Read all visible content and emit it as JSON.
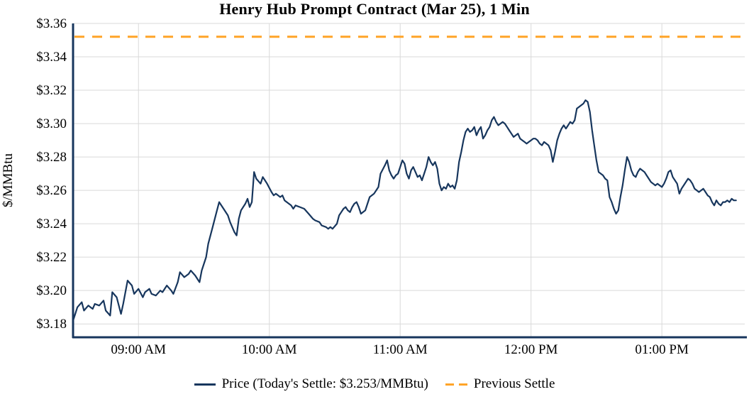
{
  "title": "Henry Hub Prompt Contract (Mar 25), 1 Min",
  "colors": {
    "price_line": "#17365d",
    "previous_settle": "#FFA428",
    "grid": "#d9d9d9",
    "axis": "#17365d",
    "text": "#000000",
    "background": "#ffffff"
  },
  "legend": {
    "price_label": "Price (Today's Settle: $3.253/MMBtu)",
    "previous_settle_label": "Previous Settle"
  },
  "chart_data": {
    "type": "line",
    "title": "Henry Hub Prompt Contract (Mar 25), 1 Min",
    "xlabel": "",
    "ylabel": "$/MMBtu",
    "x_unit": "minutes since 08:30 AM",
    "xlim": [
      0,
      308
    ],
    "ylim": [
      3.172,
      3.36
    ],
    "grid": true,
    "legend_position": "bottom",
    "x_ticks": [
      {
        "value": 30,
        "label": "09:00 AM"
      },
      {
        "value": 90,
        "label": "10:00 AM"
      },
      {
        "value": 150,
        "label": "11:00 AM"
      },
      {
        "value": 210,
        "label": "12:00 PM"
      },
      {
        "value": 270,
        "label": "01:00 PM"
      }
    ],
    "y_ticks": [
      {
        "value": 3.18,
        "label": "$3.18"
      },
      {
        "value": 3.2,
        "label": "$3.20"
      },
      {
        "value": 3.22,
        "label": "$3.22"
      },
      {
        "value": 3.24,
        "label": "$3.24"
      },
      {
        "value": 3.26,
        "label": "$3.26"
      },
      {
        "value": 3.28,
        "label": "$3.28"
      },
      {
        "value": 3.3,
        "label": "$3.30"
      },
      {
        "value": 3.32,
        "label": "$3.32"
      },
      {
        "value": 3.34,
        "label": "$3.34"
      },
      {
        "value": 3.36,
        "label": "$3.36"
      }
    ],
    "today_settle": 3.253,
    "previous_settle": 3.352,
    "series": [
      {
        "name": "Price (Today's Settle: $3.253/MMBtu)",
        "style": "solid",
        "color": "#17365d",
        "points": [
          [
            0,
            3.182
          ],
          [
            1,
            3.186
          ],
          [
            2,
            3.19
          ],
          [
            4,
            3.193
          ],
          [
            5,
            3.188
          ],
          [
            7,
            3.191
          ],
          [
            9,
            3.189
          ],
          [
            10,
            3.192
          ],
          [
            12,
            3.191
          ],
          [
            14,
            3.194
          ],
          [
            15,
            3.188
          ],
          [
            17,
            3.185
          ],
          [
            18,
            3.199
          ],
          [
            20,
            3.196
          ],
          [
            22,
            3.186
          ],
          [
            23,
            3.192
          ],
          [
            25,
            3.206
          ],
          [
            27,
            3.203
          ],
          [
            28,
            3.198
          ],
          [
            30,
            3.201
          ],
          [
            32,
            3.196
          ],
          [
            33,
            3.199
          ],
          [
            35,
            3.201
          ],
          [
            36,
            3.198
          ],
          [
            38,
            3.197
          ],
          [
            40,
            3.2
          ],
          [
            41,
            3.199
          ],
          [
            43,
            3.203
          ],
          [
            45,
            3.2
          ],
          [
            46,
            3.198
          ],
          [
            48,
            3.205
          ],
          [
            49,
            3.211
          ],
          [
            51,
            3.208
          ],
          [
            53,
            3.21
          ],
          [
            54,
            3.212
          ],
          [
            56,
            3.209
          ],
          [
            58,
            3.205
          ],
          [
            59,
            3.212
          ],
          [
            61,
            3.22
          ],
          [
            62,
            3.228
          ],
          [
            64,
            3.238
          ],
          [
            66,
            3.248
          ],
          [
            67,
            3.253
          ],
          [
            69,
            3.249
          ],
          [
            71,
            3.245
          ],
          [
            72,
            3.241
          ],
          [
            74,
            3.235
          ],
          [
            75,
            3.233
          ],
          [
            76,
            3.243
          ],
          [
            77,
            3.248
          ],
          [
            79,
            3.252
          ],
          [
            80,
            3.255
          ],
          [
            81,
            3.25
          ],
          [
            82,
            3.253
          ],
          [
            83,
            3.271
          ],
          [
            84,
            3.267
          ],
          [
            86,
            3.264
          ],
          [
            87,
            3.268
          ],
          [
            88,
            3.266
          ],
          [
            89,
            3.264
          ],
          [
            91,
            3.259
          ],
          [
            92,
            3.257
          ],
          [
            93,
            3.258
          ],
          [
            95,
            3.256
          ],
          [
            96,
            3.257
          ],
          [
            97,
            3.254
          ],
          [
            98,
            3.253
          ],
          [
            100,
            3.251
          ],
          [
            101,
            3.249
          ],
          [
            102,
            3.251
          ],
          [
            104,
            3.25
          ],
          [
            106,
            3.249
          ],
          [
            108,
            3.246
          ],
          [
            110,
            3.243
          ],
          [
            111,
            3.242
          ],
          [
            113,
            3.241
          ],
          [
            114,
            3.239
          ],
          [
            116,
            3.238
          ],
          [
            117,
            3.237
          ],
          [
            118,
            3.238
          ],
          [
            119,
            3.237
          ],
          [
            121,
            3.24
          ],
          [
            122,
            3.245
          ],
          [
            123,
            3.247
          ],
          [
            124,
            3.249
          ],
          [
            125,
            3.25
          ],
          [
            126,
            3.248
          ],
          [
            127,
            3.247
          ],
          [
            128,
            3.25
          ],
          [
            129,
            3.252
          ],
          [
            130,
            3.253
          ],
          [
            131,
            3.25
          ],
          [
            132,
            3.246
          ],
          [
            134,
            3.248
          ],
          [
            135,
            3.252
          ],
          [
            136,
            3.256
          ],
          [
            138,
            3.258
          ],
          [
            139,
            3.26
          ],
          [
            140,
            3.262
          ],
          [
            141,
            3.27
          ],
          [
            143,
            3.275
          ],
          [
            144,
            3.278
          ],
          [
            145,
            3.272
          ],
          [
            146,
            3.269
          ],
          [
            147,
            3.267
          ],
          [
            148,
            3.269
          ],
          [
            149,
            3.27
          ],
          [
            150,
            3.274
          ],
          [
            151,
            3.278
          ],
          [
            152,
            3.276
          ],
          [
            153,
            3.27
          ],
          [
            154,
            3.267
          ],
          [
            155,
            3.272
          ],
          [
            156,
            3.274
          ],
          [
            157,
            3.271
          ],
          [
            158,
            3.268
          ],
          [
            159,
            3.269
          ],
          [
            160,
            3.266
          ],
          [
            161,
            3.27
          ],
          [
            162,
            3.274
          ],
          [
            163,
            3.28
          ],
          [
            164,
            3.277
          ],
          [
            165,
            3.275
          ],
          [
            166,
            3.277
          ],
          [
            167,
            3.273
          ],
          [
            168,
            3.264
          ],
          [
            169,
            3.26
          ],
          [
            170,
            3.262
          ],
          [
            171,
            3.261
          ],
          [
            172,
            3.264
          ],
          [
            173,
            3.262
          ],
          [
            174,
            3.263
          ],
          [
            175,
            3.261
          ],
          [
            176,
            3.266
          ],
          [
            177,
            3.277
          ],
          [
            178,
            3.283
          ],
          [
            179,
            3.29
          ],
          [
            180,
            3.295
          ],
          [
            181,
            3.297
          ],
          [
            182,
            3.295
          ],
          [
            183,
            3.296
          ],
          [
            184,
            3.298
          ],
          [
            185,
            3.293
          ],
          [
            186,
            3.296
          ],
          [
            187,
            3.298
          ],
          [
            188,
            3.291
          ],
          [
            189,
            3.293
          ],
          [
            190,
            3.296
          ],
          [
            191,
            3.298
          ],
          [
            192,
            3.302
          ],
          [
            193,
            3.304
          ],
          [
            194,
            3.301
          ],
          [
            195,
            3.299
          ],
          [
            196,
            3.3
          ],
          [
            197,
            3.301
          ],
          [
            198,
            3.3
          ],
          [
            199,
            3.298
          ],
          [
            200,
            3.296
          ],
          [
            201,
            3.294
          ],
          [
            202,
            3.292
          ],
          [
            203,
            3.293
          ],
          [
            204,
            3.294
          ],
          [
            205,
            3.291
          ],
          [
            206,
            3.29
          ],
          [
            207,
            3.289
          ],
          [
            208,
            3.288
          ],
          [
            209,
            3.289
          ],
          [
            210,
            3.29
          ],
          [
            211,
            3.291
          ],
          [
            212,
            3.291
          ],
          [
            213,
            3.29
          ],
          [
            214,
            3.288
          ],
          [
            215,
            3.287
          ],
          [
            216,
            3.289
          ],
          [
            217,
            3.288
          ],
          [
            218,
            3.287
          ],
          [
            219,
            3.284
          ],
          [
            220,
            3.277
          ],
          [
            221,
            3.283
          ],
          [
            222,
            3.29
          ],
          [
            223,
            3.294
          ],
          [
            224,
            3.297
          ],
          [
            225,
            3.299
          ],
          [
            226,
            3.297
          ],
          [
            227,
            3.299
          ],
          [
            228,
            3.301
          ],
          [
            229,
            3.3
          ],
          [
            230,
            3.302
          ],
          [
            231,
            3.309
          ],
          [
            232,
            3.31
          ],
          [
            233,
            3.311
          ],
          [
            234,
            3.312
          ],
          [
            235,
            3.314
          ],
          [
            236,
            3.313
          ],
          [
            237,
            3.307
          ],
          [
            238,
            3.296
          ],
          [
            239,
            3.287
          ],
          [
            240,
            3.278
          ],
          [
            241,
            3.271
          ],
          [
            242,
            3.27
          ],
          [
            243,
            3.269
          ],
          [
            244,
            3.267
          ],
          [
            245,
            3.266
          ],
          [
            246,
            3.256
          ],
          [
            247,
            3.253
          ],
          [
            248,
            3.249
          ],
          [
            249,
            3.246
          ],
          [
            250,
            3.248
          ],
          [
            251,
            3.256
          ],
          [
            252,
            3.263
          ],
          [
            253,
            3.272
          ],
          [
            254,
            3.28
          ],
          [
            255,
            3.277
          ],
          [
            256,
            3.272
          ],
          [
            257,
            3.269
          ],
          [
            258,
            3.268
          ],
          [
            259,
            3.271
          ],
          [
            260,
            3.273
          ],
          [
            261,
            3.272
          ],
          [
            262,
            3.271
          ],
          [
            263,
            3.269
          ],
          [
            264,
            3.267
          ],
          [
            265,
            3.265
          ],
          [
            266,
            3.264
          ],
          [
            267,
            3.263
          ],
          [
            268,
            3.264
          ],
          [
            269,
            3.263
          ],
          [
            270,
            3.262
          ],
          [
            271,
            3.264
          ],
          [
            272,
            3.267
          ],
          [
            273,
            3.271
          ],
          [
            274,
            3.272
          ],
          [
            275,
            3.268
          ],
          [
            276,
            3.266
          ],
          [
            277,
            3.264
          ],
          [
            278,
            3.258
          ],
          [
            279,
            3.261
          ],
          [
            280,
            3.263
          ],
          [
            281,
            3.265
          ],
          [
            282,
            3.267
          ],
          [
            283,
            3.266
          ],
          [
            284,
            3.264
          ],
          [
            285,
            3.261
          ],
          [
            286,
            3.26
          ],
          [
            287,
            3.259
          ],
          [
            288,
            3.26
          ],
          [
            289,
            3.261
          ],
          [
            290,
            3.259
          ],
          [
            291,
            3.257
          ],
          [
            292,
            3.256
          ],
          [
            293,
            3.253
          ],
          [
            294,
            3.251
          ],
          [
            295,
            3.254
          ],
          [
            296,
            3.252
          ],
          [
            297,
            3.251
          ],
          [
            298,
            3.253
          ],
          [
            299,
            3.253
          ],
          [
            300,
            3.254
          ],
          [
            301,
            3.253
          ],
          [
            302,
            3.255
          ],
          [
            303,
            3.254
          ],
          [
            304,
            3.254
          ]
        ]
      },
      {
        "name": "Previous Settle",
        "style": "dashed",
        "color": "#FFA428",
        "value": 3.352
      }
    ]
  }
}
